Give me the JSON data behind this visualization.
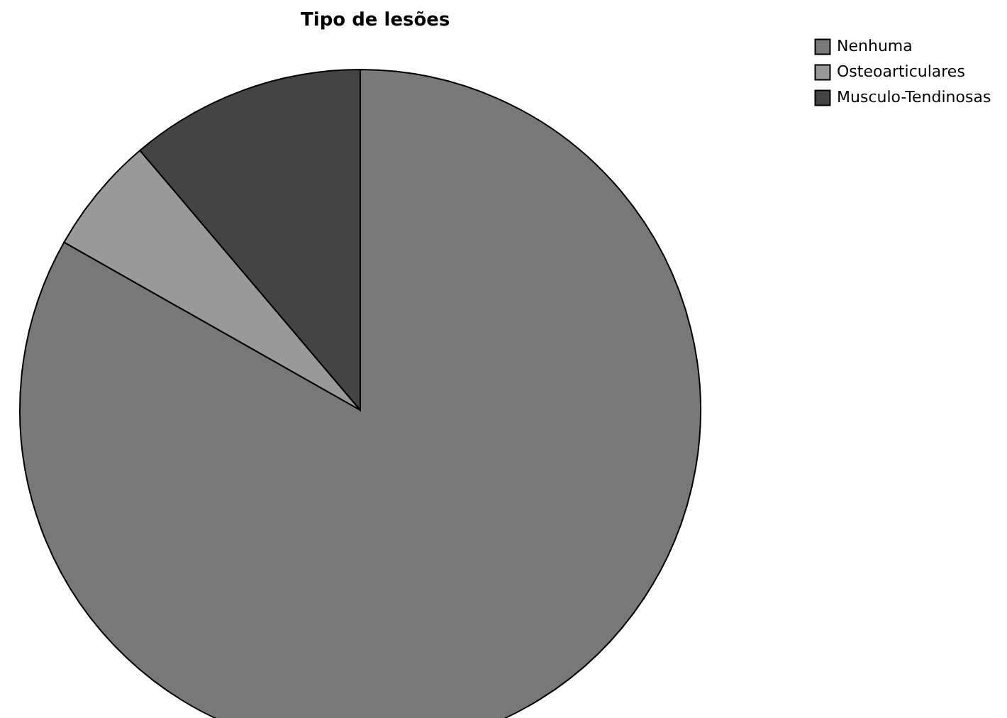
{
  "chart_data": {
    "type": "pie",
    "title": "Tipo de lesões",
    "categories": [
      "Nenhuma",
      "Osteoarticulares",
      "Musculo-Tendinosas"
    ],
    "values": [
      83.2,
      5.6,
      11.2
    ],
    "colors": [
      "#787878",
      "#999999",
      "#444444"
    ],
    "legend": "top right"
  }
}
